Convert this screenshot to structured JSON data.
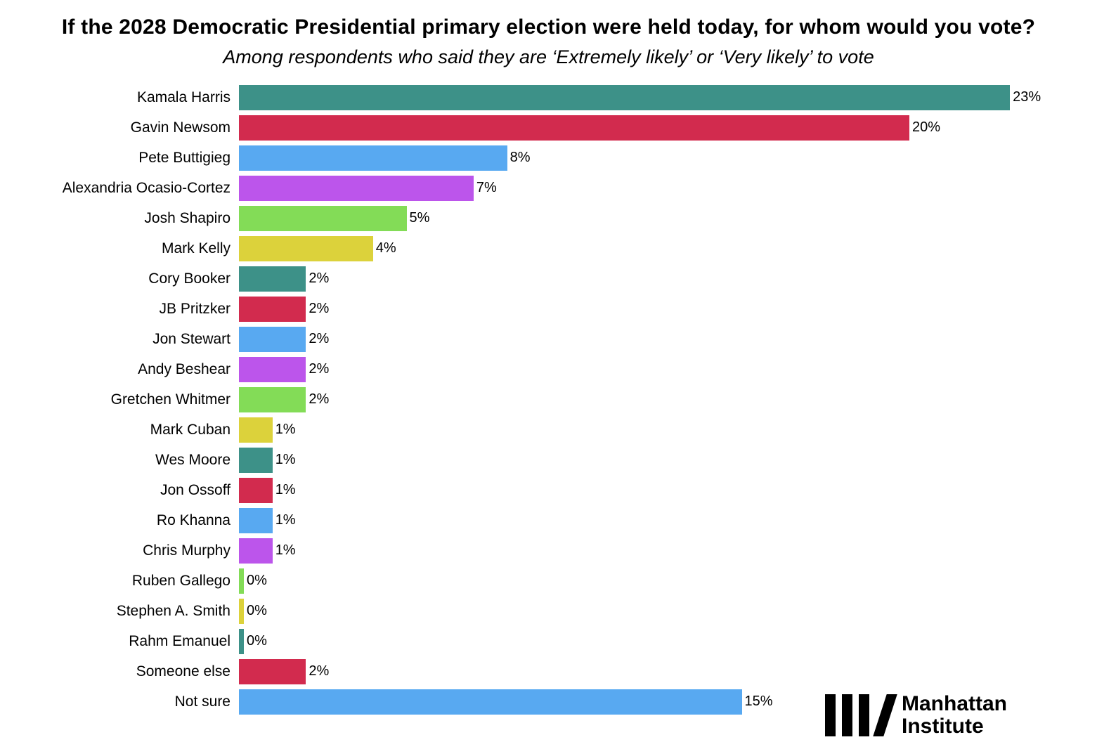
{
  "chart_data": {
    "type": "bar",
    "orientation": "horizontal",
    "title": "If the 2028 Democratic Presidential primary election were held today, for whom would you vote?",
    "subtitle": "Among respondents who said they are ‘Extremely likely’ or ‘Very likely’ to vote",
    "categories": [
      "Kamala Harris",
      "Gavin Newsom",
      "Pete Buttigieg",
      "Alexandria Ocasio-Cortez",
      "Josh Shapiro",
      "Mark Kelly",
      "Cory Booker",
      "JB Pritzker",
      "Jon Stewart",
      "Andy Beshear",
      "Gretchen Whitmer",
      "Mark Cuban",
      "Wes Moore",
      "Jon Ossoff",
      "Ro Khanna",
      "Chris Murphy",
      "Ruben Gallego",
      "Stephen A. Smith",
      "Rahm Emanuel",
      "Someone else",
      "Not sure"
    ],
    "values": [
      23,
      20,
      8,
      7,
      5,
      4,
      2,
      2,
      2,
      2,
      2,
      1,
      1,
      1,
      1,
      1,
      0,
      0,
      0,
      2,
      15
    ],
    "value_labels": [
      "23%",
      "20%",
      "8%",
      "7%",
      "5%",
      "4%",
      "2%",
      "2%",
      "2%",
      "2%",
      "2%",
      "1%",
      "1%",
      "1%",
      "1%",
      "1%",
      "0%",
      "0%",
      "0%",
      "2%",
      "15%"
    ],
    "value_suffix": "%",
    "xlim": [
      0,
      23
    ],
    "grid": false,
    "legend": "none",
    "colors": [
      "#3D9188",
      "#D22B4E",
      "#58A9F1",
      "#BC55EB",
      "#83DC57",
      "#DCD23B"
    ]
  },
  "logo": {
    "line1": "Manhattan",
    "line2": "Institute"
  }
}
